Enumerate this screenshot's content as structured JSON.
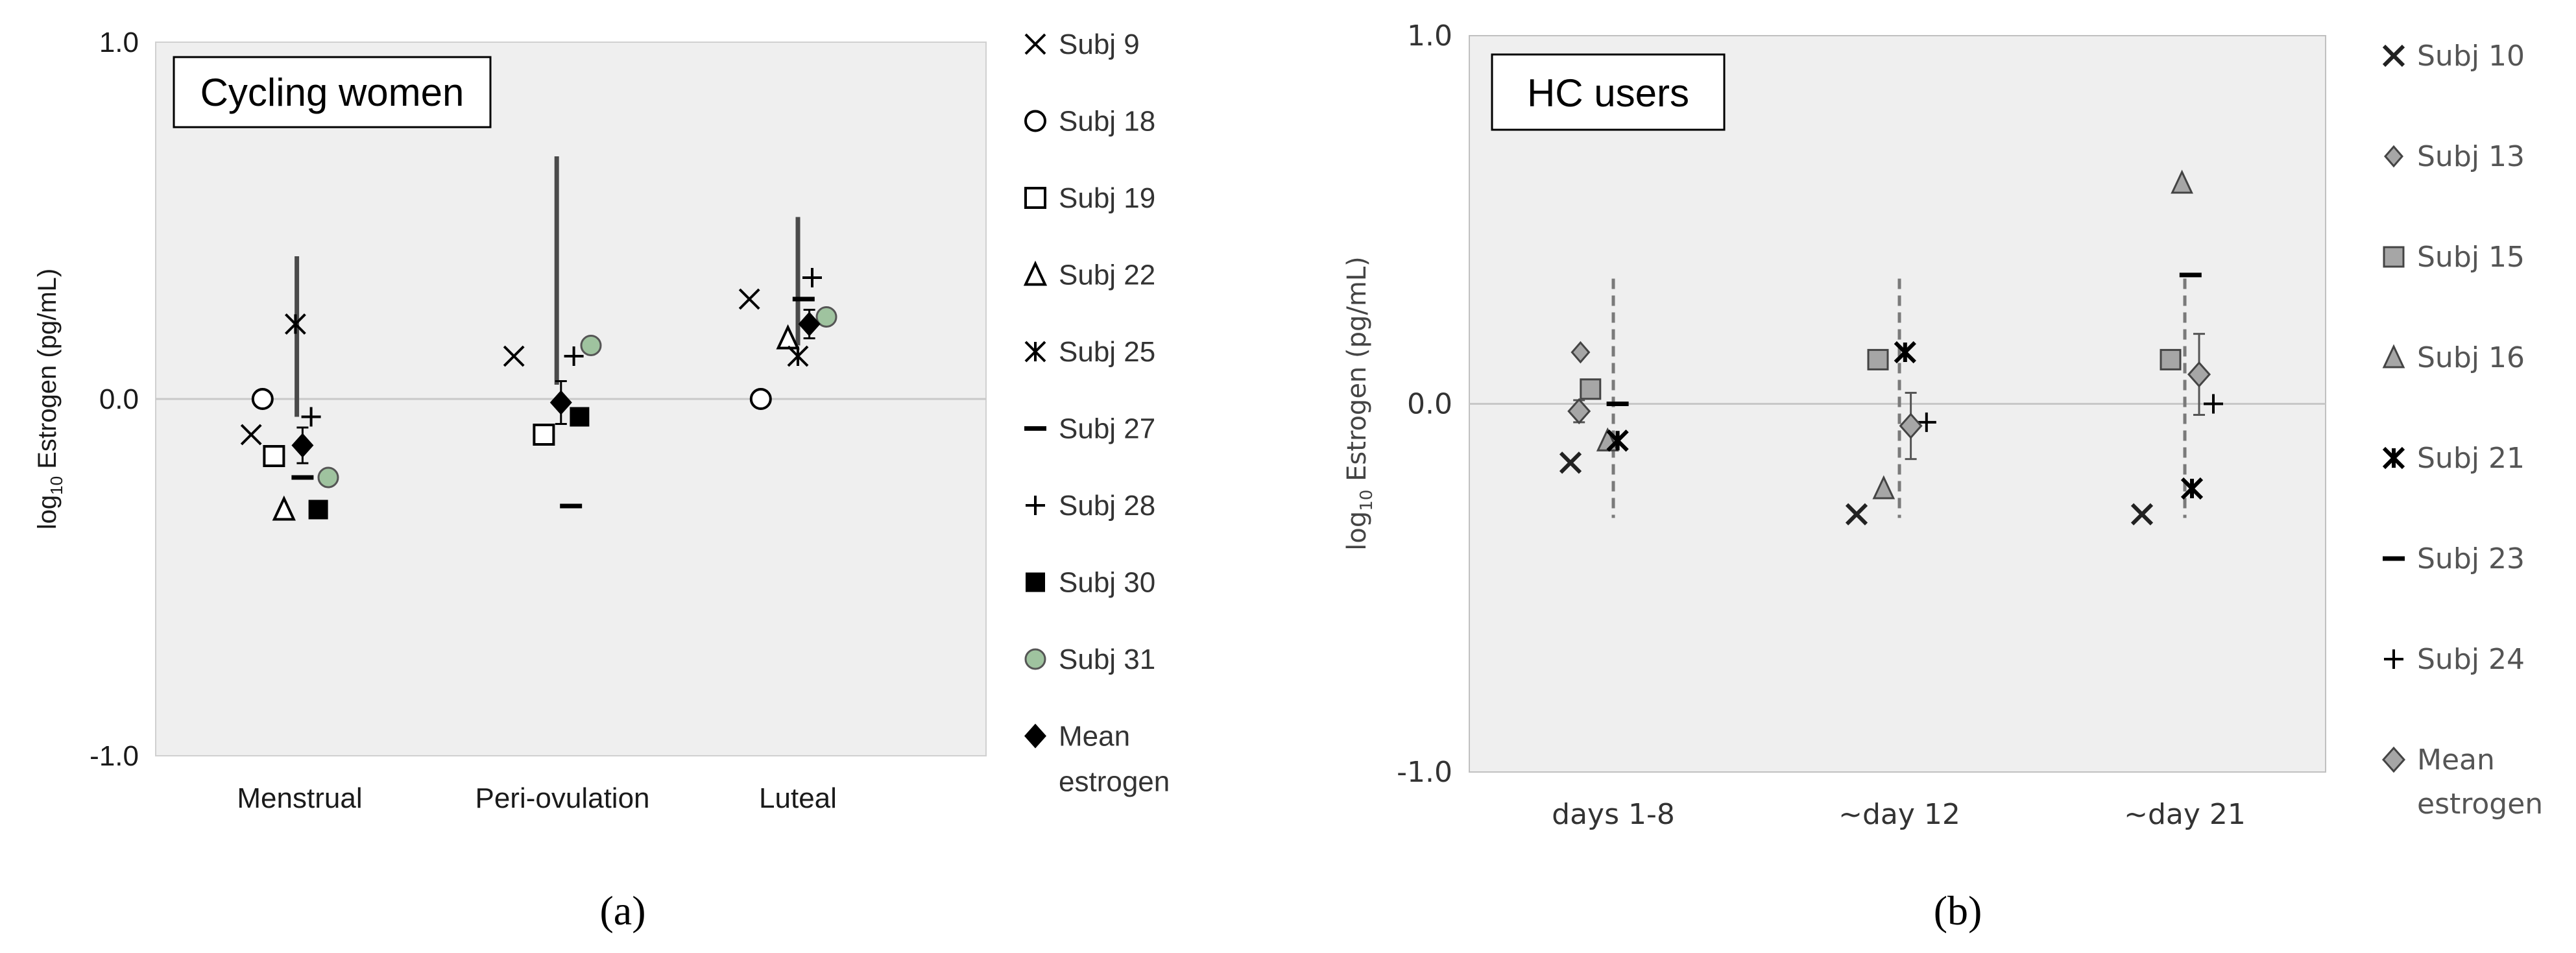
{
  "figure": {
    "label_a": "(a)",
    "label_b": "(b)"
  },
  "colors": {
    "plot_bg": "#efefef",
    "black": "#000000",
    "green": "#9fc39f",
    "grey_marker": "#a6a6a6",
    "dark_marker": "#555555"
  },
  "chart_data": [
    {
      "type": "scatter",
      "title": "Cycling women",
      "xlabel": "",
      "ylabel": "log10 Estrogen (pg/mL)",
      "ylabel_main": "log",
      "ylabel_sub": "10",
      "ylabel_rest": " Estrogen (pg/mL)",
      "ylim": [
        -1.0,
        1.0
      ],
      "yticks": [
        {
          "v": 1.0,
          "label": "1.0"
        },
        {
          "v": 0.0,
          "label": "0.0"
        },
        {
          "v": -1.0,
          "label": "-1.0"
        }
      ],
      "categories": [
        "Menstrual",
        "Peri-ovulation",
        "Luteal"
      ],
      "series": [
        {
          "name": "Subj 9",
          "marker": "x",
          "points": [
            {
              "cat": 0,
              "off": -0.34,
              "y": -0.1
            },
            {
              "cat": 1,
              "off": -0.34,
              "y": 0.12
            },
            {
              "cat": 2,
              "off": -0.34,
              "y": 0.28
            }
          ]
        },
        {
          "name": "Subj 18",
          "marker": "circle",
          "points": [
            {
              "cat": 0,
              "off": -0.26,
              "y": 0.0
            },
            {
              "cat": 2,
              "off": -0.26,
              "y": 0.0
            }
          ]
        },
        {
          "name": "Subj 19",
          "marker": "square",
          "points": [
            {
              "cat": 0,
              "off": -0.18,
              "y": -0.16
            },
            {
              "cat": 1,
              "off": -0.13,
              "y": -0.1
            }
          ]
        },
        {
          "name": "Subj 22",
          "marker": "triangle",
          "points": [
            {
              "cat": 0,
              "off": -0.11,
              "y": -0.31
            },
            {
              "cat": 2,
              "off": -0.07,
              "y": 0.17
            }
          ]
        },
        {
          "name": "Subj 25",
          "marker": "asterisk",
          "points": [
            {
              "cat": 0,
              "off": -0.03,
              "y": 0.21
            },
            {
              "cat": 2,
              "off": 0.0,
              "y": 0.12
            }
          ]
        },
        {
          "name": "Subj 27",
          "marker": "dash",
          "points": [
            {
              "cat": 0,
              "off": 0.02,
              "y": -0.22
            },
            {
              "cat": 1,
              "off": 0.06,
              "y": -0.3
            },
            {
              "cat": 2,
              "off": 0.04,
              "y": 0.28
            }
          ]
        },
        {
          "name": "Subj 28",
          "marker": "plus",
          "points": [
            {
              "cat": 0,
              "off": 0.08,
              "y": -0.05
            },
            {
              "cat": 1,
              "off": 0.08,
              "y": 0.12
            },
            {
              "cat": 2,
              "off": 0.1,
              "y": 0.34
            }
          ]
        },
        {
          "name": "Subj 30",
          "marker": "fsquare",
          "points": [
            {
              "cat": 0,
              "off": 0.13,
              "y": -0.31
            },
            {
              "cat": 1,
              "off": 0.12,
              "y": -0.05
            }
          ]
        },
        {
          "name": "Subj 31",
          "marker": "gcircle",
          "points": [
            {
              "cat": 0,
              "off": 0.2,
              "y": -0.22
            },
            {
              "cat": 1,
              "off": 0.2,
              "y": 0.15
            },
            {
              "cat": 2,
              "off": 0.2,
              "y": 0.23
            }
          ]
        },
        {
          "name": "Mean estrogen",
          "name_line1": "Mean",
          "name_line2": "estrogen",
          "marker": "diamond",
          "points": [
            {
              "cat": 0,
              "off": 0.02,
              "y": -0.13,
              "err": 0.05
            },
            {
              "cat": 1,
              "off": -0.01,
              "y": -0.01,
              "err": 0.06
            },
            {
              "cat": 2,
              "off": 0.08,
              "y": 0.21,
              "err": 0.04
            }
          ]
        }
      ],
      "range_lines": [
        {
          "cat": 0,
          "off": -0.02,
          "y1": -0.05,
          "y2": 0.4
        },
        {
          "cat": 1,
          "off": -0.04,
          "y1": 0.04,
          "y2": 0.68
        },
        {
          "cat": 2,
          "off": 0.0,
          "y1": 0.15,
          "y2": 0.51
        }
      ]
    },
    {
      "type": "scatter",
      "title": "HC users",
      "xlabel": "",
      "ylabel": "log10 Estrogen (pg/mL)",
      "ylabel_main": "log",
      "ylabel_sub": "10",
      "ylabel_rest": " Estrogen (pg/mL)",
      "ylim": [
        -1.0,
        1.0
      ],
      "yticks": [
        {
          "v": 1.0,
          "label": "1.0"
        },
        {
          "v": 0.0,
          "label": "0.0"
        },
        {
          "v": -1.0,
          "label": "-1.0"
        }
      ],
      "categories": [
        "days 1-8",
        "~day 12",
        "~day 21"
      ],
      "series": [
        {
          "name": "Subj 10",
          "marker": "x-bold",
          "points": [
            {
              "cat": 0,
              "off": -0.3,
              "y": -0.16
            },
            {
              "cat": 1,
              "off": -0.3,
              "y": -0.3
            },
            {
              "cat": 2,
              "off": -0.3,
              "y": -0.3
            }
          ]
        },
        {
          "name": "Subj 13",
          "marker": "gdiamond-s",
          "points": [
            {
              "cat": 0,
              "off": -0.23,
              "y": 0.14
            }
          ]
        },
        {
          "name": "Subj 15",
          "marker": "gsquare",
          "points": [
            {
              "cat": 0,
              "off": -0.16,
              "y": 0.04
            },
            {
              "cat": 1,
              "off": -0.15,
              "y": 0.12
            },
            {
              "cat": 2,
              "off": -0.1,
              "y": 0.12
            }
          ]
        },
        {
          "name": "Subj 16",
          "marker": "gtriangle",
          "points": [
            {
              "cat": 0,
              "off": -0.04,
              "y": -0.1
            },
            {
              "cat": 1,
              "off": -0.11,
              "y": -0.23
            },
            {
              "cat": 2,
              "off": -0.02,
              "y": 0.6
            }
          ]
        },
        {
          "name": "Subj 21",
          "marker": "asterisk-b",
          "points": [
            {
              "cat": 0,
              "off": 0.03,
              "y": -0.1
            },
            {
              "cat": 1,
              "off": 0.04,
              "y": 0.14
            },
            {
              "cat": 2,
              "off": 0.05,
              "y": -0.23
            }
          ]
        },
        {
          "name": "Subj 23",
          "marker": "dash",
          "points": [
            {
              "cat": 0,
              "off": 0.03,
              "y": 0.0
            },
            {
              "cat": 2,
              "off": 0.04,
              "y": 0.35
            }
          ]
        },
        {
          "name": "Subj 24",
          "marker": "plus",
          "points": [
            {
              "cat": 1,
              "off": 0.19,
              "y": -0.05
            },
            {
              "cat": 2,
              "off": 0.2,
              "y": 0.0
            }
          ]
        },
        {
          "name": "Mean estrogen",
          "name_line1": "Mean",
          "name_line2": "estrogen",
          "marker": "gdiamond",
          "points": [
            {
              "cat": 0,
              "off": -0.24,
              "y": -0.02,
              "err": 0.03
            },
            {
              "cat": 1,
              "off": 0.08,
              "y": -0.06,
              "err": 0.09
            },
            {
              "cat": 2,
              "off": 0.1,
              "y": 0.08,
              "err": 0.11
            }
          ]
        }
      ],
      "range_lines": [
        {
          "cat": 0,
          "off": 0.0,
          "y1": -0.31,
          "y2": 0.34
        },
        {
          "cat": 1,
          "off": 0.0,
          "y1": -0.31,
          "y2": 0.34
        },
        {
          "cat": 2,
          "off": 0.0,
          "y1": -0.31,
          "y2": 0.34
        }
      ]
    }
  ]
}
